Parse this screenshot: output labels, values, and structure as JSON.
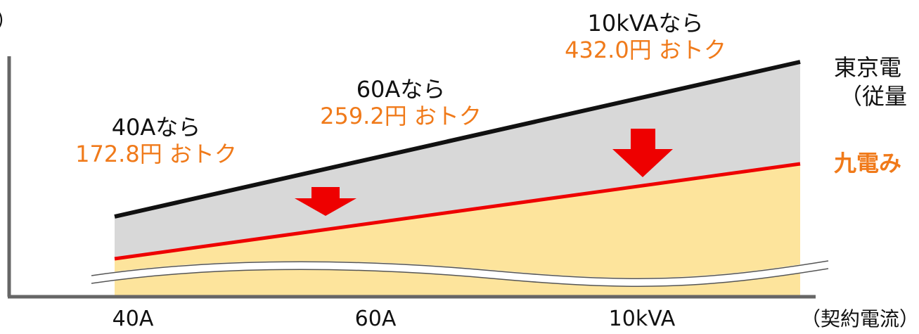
{
  "chart_data": {
    "type": "area",
    "title": "",
    "xlabel": "（契約電流）",
    "ylabel": "",
    "y_unit_fragment": "）",
    "categories": [
      "40A",
      "60A",
      "10kVA"
    ],
    "series": [
      {
        "name": "東京電",
        "subname": "（従量",
        "color": "#111111"
      },
      {
        "name": "九電み",
        "color": "#ee0000"
      }
    ],
    "annotations": [
      {
        "label": "40Aなら",
        "saving": "172.8円 おトク"
      },
      {
        "label": "60Aなら",
        "saving": "259.2円 おトク"
      },
      {
        "label": "10kVAなら",
        "saving": "432.0円 おトク"
      }
    ],
    "colors": {
      "savings_fill": "#d8d8d8",
      "base_fill": "#fde49c",
      "arrow": "#ee0000",
      "text_accent": "#f07a1a",
      "text_main": "#111111"
    },
    "grid": false,
    "axis_break": true
  }
}
